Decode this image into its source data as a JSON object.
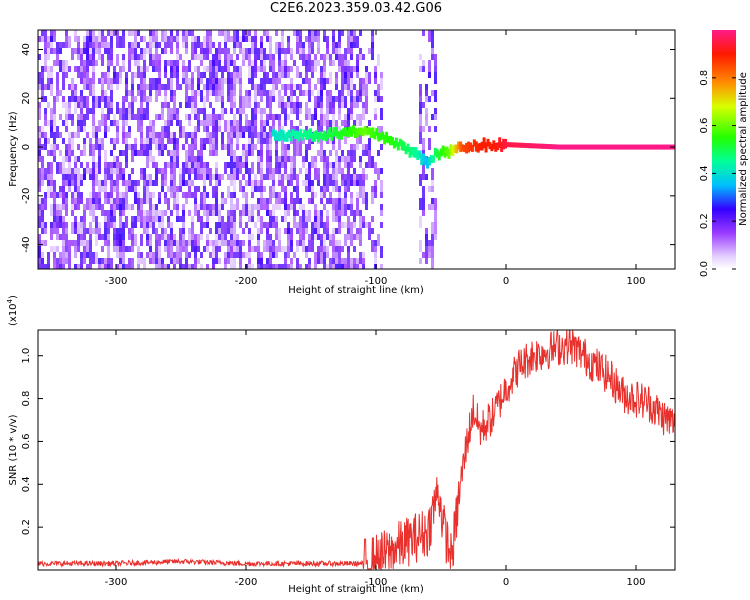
{
  "title": "C2E6.2023.359.03.42.G06",
  "chart_data": [
    {
      "type": "heatmap",
      "xlabel": "Height of straight line (km)",
      "ylabel": "Frequency (Hz)",
      "xlim": [
        -360,
        130
      ],
      "ylim": [
        -50,
        48
      ],
      "xticks": [
        -300,
        -200,
        -100,
        0,
        100
      ],
      "yticks": [
        -40,
        -20,
        0,
        20,
        40
      ],
      "colorbar": {
        "label": "Normalized spectral amplitude",
        "ticks": [
          0.0,
          0.2,
          0.4,
          0.6,
          0.8
        ],
        "range": [
          0,
          1
        ]
      },
      "ridge": {
        "x": [
          -180,
          -160,
          -140,
          -120,
          -110,
          -100,
          -90,
          -80,
          -70,
          -62,
          -55,
          -45,
          -35,
          -20,
          -10,
          0,
          40,
          80,
          130
        ],
        "y": [
          5,
          5,
          5,
          6,
          6,
          5,
          3,
          0,
          -3,
          -6,
          -3,
          -2,
          0,
          1,
          1,
          1,
          0,
          0,
          0
        ],
        "amplitude": [
          0.4,
          0.45,
          0.5,
          0.55,
          0.6,
          0.55,
          0.55,
          0.5,
          0.45,
          0.35,
          0.5,
          0.6,
          0.85,
          0.9,
          0.9,
          0.95,
          1.0,
          1.0,
          1.0
        ]
      },
      "grid": false
    },
    {
      "type": "line",
      "xlabel": "Height of straight line (km)",
      "ylabel": "SNR (10 * v/v)",
      "yscale_note": "(x10",
      "yscale_exp": "4",
      "yscale_close": ")",
      "xlim": [
        -360,
        130
      ],
      "ylim": [
        0,
        1.12
      ],
      "xticks": [
        -300,
        -200,
        -100,
        0,
        100
      ],
      "yticks": [
        0.2,
        0.4,
        0.6,
        0.8,
        1.0
      ],
      "color": "#e8302c",
      "x": [
        -360,
        -300,
        -250,
        -200,
        -150,
        -110,
        -100,
        -90,
        -80,
        -70,
        -60,
        -52,
        -48,
        -42,
        -35,
        -30,
        -25,
        -20,
        -10,
        0,
        10,
        20,
        30,
        40,
        50,
        60,
        70,
        80,
        90,
        100,
        110,
        120,
        130
      ],
      "y": [
        0.03,
        0.03,
        0.04,
        0.03,
        0.03,
        0.03,
        0.05,
        0.08,
        0.12,
        0.15,
        0.18,
        0.38,
        0.2,
        0.05,
        0.4,
        0.6,
        0.75,
        0.65,
        0.72,
        0.85,
        0.95,
        1.0,
        1.02,
        1.04,
        1.05,
        1.0,
        0.95,
        0.9,
        0.82,
        0.8,
        0.78,
        0.72,
        0.68
      ]
    }
  ]
}
